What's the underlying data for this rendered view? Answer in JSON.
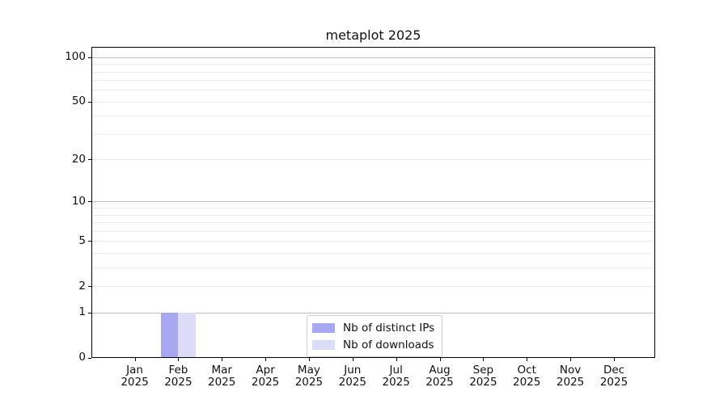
{
  "figure": {
    "background": "#ffffff"
  },
  "chart_data": {
    "type": "bar",
    "title": "metaplot 2025",
    "categories": [
      "Jan 2025",
      "Feb 2025",
      "Mar 2025",
      "Apr 2025",
      "May 2025",
      "Jun 2025",
      "Jul 2025",
      "Aug 2025",
      "Sep 2025",
      "Oct 2025",
      "Nov 2025",
      "Dec 2025"
    ],
    "series": [
      {
        "name": "Nb of distinct IPs",
        "color": "#a8a8f1",
        "values": [
          0,
          1,
          0,
          0,
          0,
          0,
          0,
          0,
          0,
          0,
          0,
          0
        ]
      },
      {
        "name": "Nb of downloads",
        "color": "#dcdcf9",
        "values": [
          0,
          1,
          0,
          0,
          0,
          0,
          0,
          0,
          0,
          0,
          0,
          0
        ]
      }
    ],
    "y_axis": {
      "scale": "log10(1+v)",
      "tick_values": [
        0,
        1,
        2,
        5,
        10,
        20,
        50,
        100
      ],
      "tick_labels": [
        "0",
        "1",
        "2",
        "5",
        "10",
        "20",
        "50",
        "100"
      ],
      "major_grid_values": [
        1,
        10,
        100
      ],
      "minor_grid_values": [
        2,
        3,
        4,
        5,
        6,
        7,
        8,
        9,
        20,
        30,
        40,
        50,
        60,
        70,
        80,
        90
      ],
      "ylim": [
        0,
        115
      ]
    },
    "x_axis": {
      "xlim_months": [
        -1,
        12
      ]
    },
    "legend": {
      "position": "lower center"
    },
    "grid": "horizontal only",
    "colors": {
      "major_grid": "#bdbdbd",
      "minor_grid": "#ebebeb",
      "spine": "#000000",
      "text": "#111111"
    }
  }
}
